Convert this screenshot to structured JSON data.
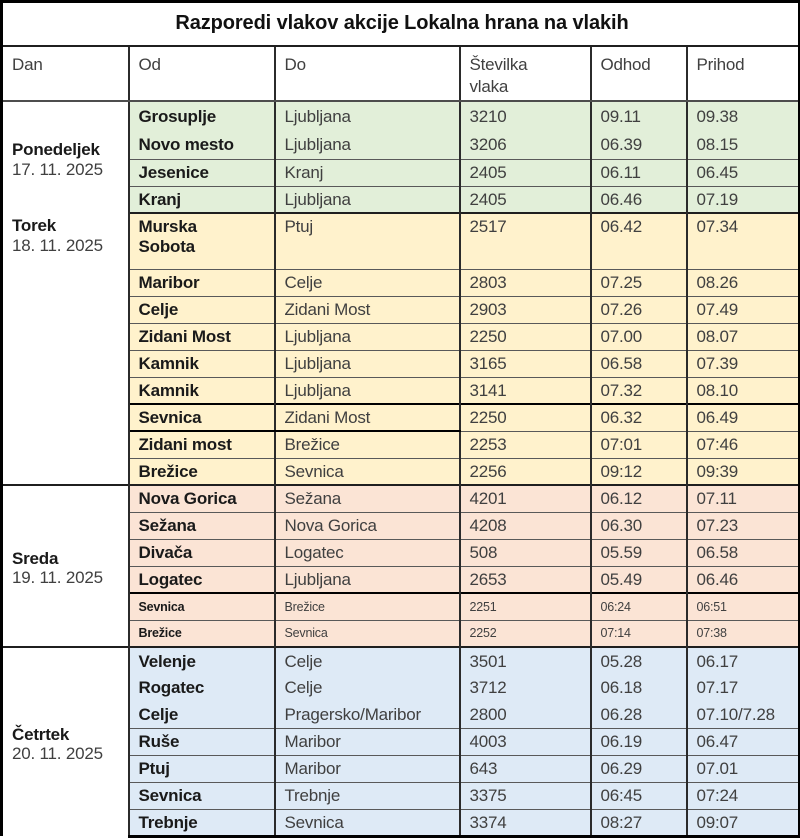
{
  "title": "Razporedi vlakov akcije Lokalna hrana na vlakih",
  "columns": {
    "dan": "Dan",
    "od": "Od",
    "do": "Do",
    "vlak": "Številka vlaka",
    "odhod": "Odhod",
    "prihod": "Prihod"
  },
  "colors": {
    "ponedeljek_bg": "#E2EFD9",
    "torek_bg": "#FFF2CC",
    "sreda_bg": "#FBE4D5",
    "cetrtek_bg": "#DEEAF6",
    "day_column_bg": "#FFFFFF",
    "text_regular": "#404040",
    "text_bold": "#1A1A1A",
    "row_border": "#595959",
    "column_border": "#2B2B2B",
    "outer_border": "#000000"
  },
  "groups": [
    {
      "day": "Ponedeljek",
      "date": "17. 11. 2025",
      "bg": "#E2EFD9",
      "rows": [
        {
          "od": "Grosuplje",
          "do": "Ljubljana",
          "vlak": "3210",
          "odhod": "09.11",
          "prihod": "09.38",
          "merge_next": true,
          "pair": true
        },
        {
          "od": "Novo mesto",
          "do": "Ljubljana",
          "vlak": "3206",
          "odhod": "06.39",
          "prihod": "08.15",
          "pair": true
        },
        {
          "od": "Jesenice",
          "do": "Kranj",
          "vlak": "2405",
          "odhod": "06.11",
          "prihod": "06.45"
        },
        {
          "od": "Kranj",
          "do": "Ljubljana",
          "vlak": "2405",
          "odhod": "06.46",
          "prihod": "07.19"
        }
      ]
    },
    {
      "day": "Torek",
      "date": "18. 11. 2025",
      "bg": "#FFF2CC",
      "rows": [
        {
          "od": "Murska Sobota",
          "do": "Ptuj",
          "vlak": "2517",
          "odhod": "06.42",
          "prihod": "07.34",
          "tall": true
        },
        {
          "od": "Maribor",
          "do": "Celje",
          "vlak": "2803",
          "odhod": "07.25",
          "prihod": "08.26"
        },
        {
          "od": "Celje",
          "do": "Zidani Most",
          "vlak": "2903",
          "odhod": "07.26",
          "prihod": "07.49"
        },
        {
          "od": "Zidani Most",
          "do": "Ljubljana",
          "vlak": "2250",
          "odhod": "07.00",
          "prihod": "08.07"
        },
        {
          "od": "Kamnik",
          "do": "Ljubljana",
          "vlak": "3165",
          "odhod": "06.58",
          "prihod": "07.39"
        },
        {
          "od": "Kamnik",
          "do": "Ljubljana",
          "vlak": "3141",
          "odhod": "07.32",
          "prihod": "08.10"
        },
        {
          "od": "Sevnica",
          "do": "Zidani Most",
          "vlak": "2250",
          "odhod": "06.32",
          "prihod": "06.49",
          "thick_top": true,
          "outlined": true
        },
        {
          "od": "Zidani most",
          "do": "Brežice",
          "vlak": "2253",
          "odhod": "07:01",
          "prihod": "07:46"
        },
        {
          "od": "Brežice",
          "do": "Sevnica",
          "vlak": "2256",
          "odhod": "09:12",
          "prihod": "09:39"
        }
      ]
    },
    {
      "day": "Sreda",
      "date": "19. 11. 2025",
      "bg": "#FBE4D5",
      "rows": [
        {
          "od": "Nova Gorica",
          "do": "Sežana",
          "vlak": "4201",
          "odhod": "06.12",
          "prihod": "07.11"
        },
        {
          "od": "Sežana",
          "do": "Nova Gorica",
          "vlak": "4208",
          "odhod": "06.30",
          "prihod": "07.23"
        },
        {
          "od": "Divača",
          "do": "Logatec",
          "vlak": "508",
          "odhod": "05.59",
          "prihod": "06.58"
        },
        {
          "od": "Logatec",
          "do": "Ljubljana",
          "vlak": "2653",
          "odhod": "05.49",
          "prihod": "06.46"
        },
        {
          "od": "Sevnica",
          "do": "Brežice",
          "vlak": "2251",
          "odhod": "06:24",
          "prihod": "06:51",
          "small": true,
          "thick_top": true
        },
        {
          "od": "Brežice",
          "do": "Sevnica",
          "vlak": "2252",
          "odhod": "07:14",
          "prihod": "07:38",
          "small": true
        }
      ]
    },
    {
      "day": "Četrtek",
      "date": "20. 11. 2025",
      "bg": "#DEEAF6",
      "rows": [
        {
          "od": "Velenje",
          "do": "Celje",
          "vlak": "3501",
          "odhod": "05.28",
          "prihod": "06.17",
          "merge_next": true
        },
        {
          "od": "Rogatec",
          "do": "Celje",
          "vlak": "3712",
          "odhod": "06.18",
          "prihod": "07.17",
          "merge_next": true
        },
        {
          "od": "Celje",
          "do": "Pragersko/Maribor",
          "vlak": "2800",
          "odhod": "06.28",
          "prihod": "07.10/7.28"
        },
        {
          "od": "Ruše",
          "do": "Maribor",
          "vlak": "4003",
          "odhod": "06.19",
          "prihod": "06.47"
        },
        {
          "od": "Ptuj",
          "do": "Maribor",
          "vlak": "643",
          "odhod": "06.29",
          "prihod": "07.01"
        },
        {
          "od": "Sevnica",
          "do": "Trebnje",
          "vlak": "3375",
          "odhod": "06:45",
          "prihod": "07:24"
        },
        {
          "od": "Trebnje",
          "do": "Sevnica",
          "vlak": "3374",
          "odhod": "08:27",
          "prihod": "09:07"
        }
      ]
    }
  ]
}
